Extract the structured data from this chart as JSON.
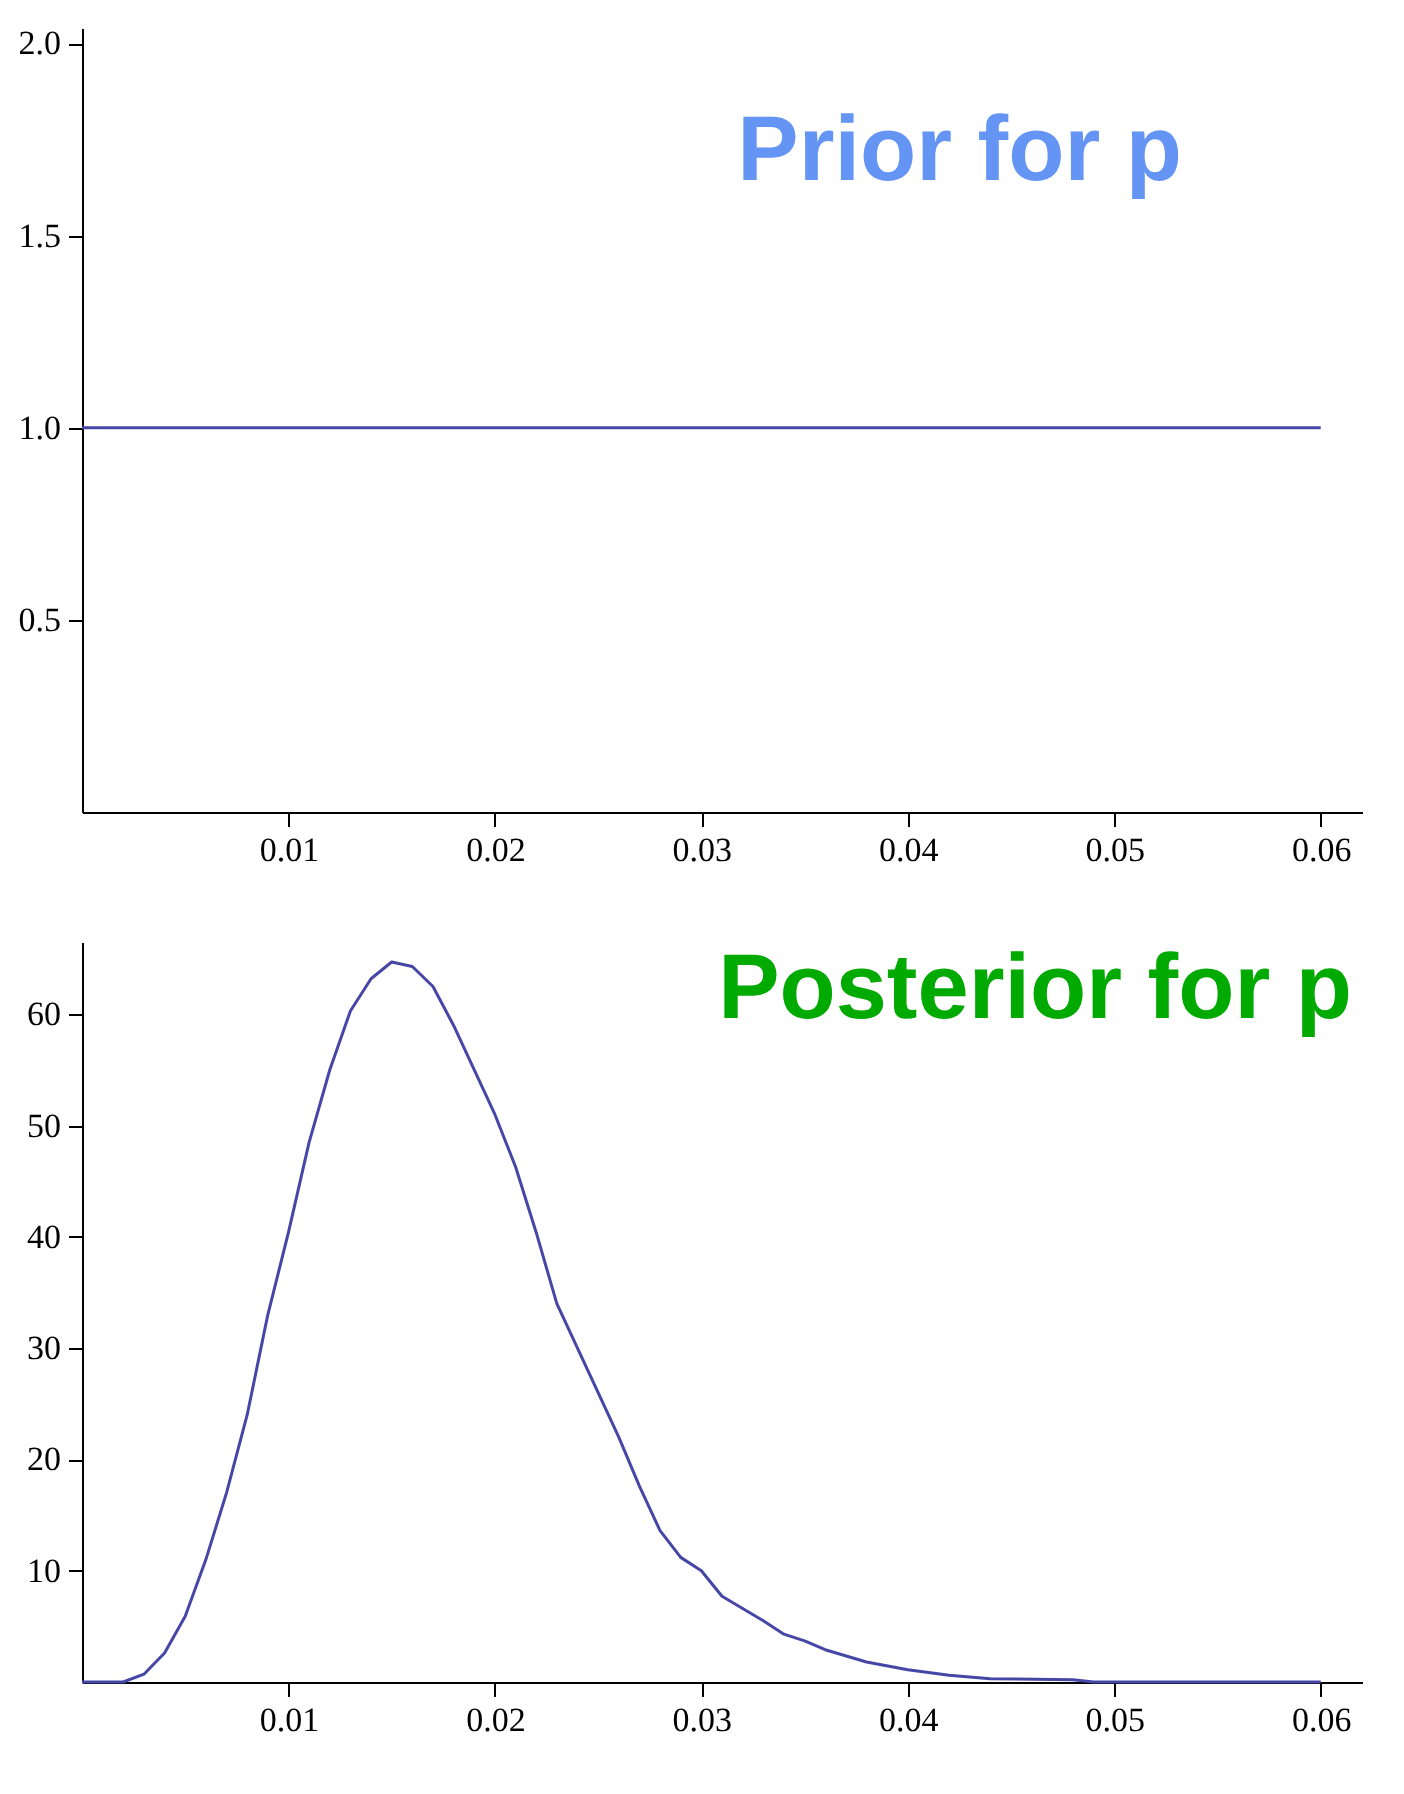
{
  "chart_data": [
    {
      "type": "line",
      "title": "Prior for p",
      "xlim": [
        0,
        0.062
      ],
      "ylim": [
        0,
        2.04
      ],
      "xticks": [
        0.01,
        0.02,
        0.03,
        0.04,
        0.05,
        0.06
      ],
      "yticks": [
        0.5,
        {
          "value": 1,
          "label": "1.0"
        },
        1.5,
        {
          "value": 2,
          "label": "2.0"
        }
      ],
      "series": [
        {
          "color": "#4646a6",
          "x": [
            0,
            0.06
          ],
          "values": [
            1,
            1
          ]
        }
      ]
    },
    {
      "type": "line",
      "title": "Posterior for p",
      "xlim": [
        0,
        0.062
      ],
      "ylim": [
        0,
        66.5
      ],
      "xticks": [
        0.01,
        0.02,
        0.03,
        0.04,
        0.05,
        0.06
      ],
      "yticks": [
        10,
        20,
        30,
        40,
        50,
        60
      ],
      "series": [
        {
          "color": "#4646a6",
          "x": [
            0,
            0.002,
            0.003,
            0.004,
            0.005,
            0.006,
            0.007,
            0.008,
            0.009,
            0.01,
            0.011,
            0.012,
            0.013,
            0.014,
            0.015,
            0.016,
            0.017,
            0.018,
            0.019,
            0.02,
            0.021,
            0.022,
            0.023,
            0.024,
            0.025,
            0.026,
            0.027,
            0.028,
            0.029,
            0.03,
            0.031,
            0.032,
            0.033,
            0.034,
            0.035,
            0.036,
            0.038,
            0.04,
            0.042,
            0.044,
            0.048,
            0.049,
            0.06
          ],
          "values": [
            0,
            0,
            0.7,
            2.6,
            5.9,
            11,
            17,
            24,
            33,
            40.4,
            48.5,
            55,
            60.3,
            63.2,
            64.7,
            64.3,
            62.5,
            59,
            55,
            51,
            46.3,
            40.4,
            34,
            30,
            26,
            22,
            17.6,
            13.6,
            11.2,
            10,
            7.7,
            6.6,
            5.5,
            4.3,
            3.7,
            2.9,
            1.8,
            1.1,
            0.6,
            0.3,
            0.2,
            0,
            0
          ]
        }
      ]
    }
  ]
}
